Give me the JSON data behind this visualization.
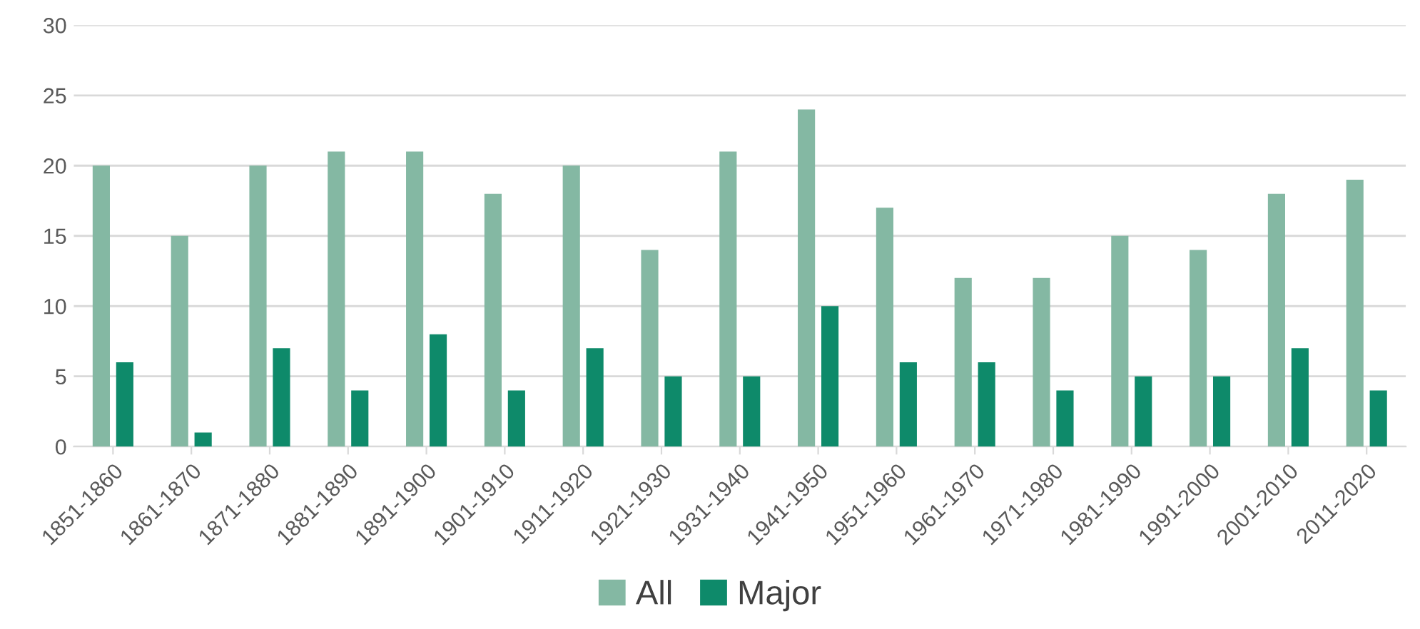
{
  "chart_data": {
    "type": "bar",
    "categories": [
      "1851-1860",
      "1861-1870",
      "1871-1880",
      "1881-1890",
      "1891-1900",
      "1901-1910",
      "1911-1920",
      "1921-1930",
      "1931-1940",
      "1941-1950",
      "1951-1960",
      "1961-1970",
      "1971-1980",
      "1981-1990",
      "1991-2000",
      "2001-2010",
      "2011-2020"
    ],
    "series": [
      {
        "name": "All",
        "color": "#84b8a3",
        "values": [
          20,
          15,
          20,
          21,
          21,
          18,
          20,
          14,
          21,
          24,
          17,
          12,
          12,
          15,
          14,
          18,
          19
        ]
      },
      {
        "name": "Major",
        "color": "#0e8a6a",
        "values": [
          6,
          1,
          7,
          4,
          8,
          4,
          7,
          5,
          5,
          10,
          6,
          6,
          4,
          5,
          5,
          7,
          4
        ]
      }
    ],
    "ylim": [
      0,
      30
    ],
    "yticks": [
      0,
      5,
      10,
      15,
      20,
      25,
      30
    ],
    "grid": "y",
    "legend": "bottom"
  }
}
